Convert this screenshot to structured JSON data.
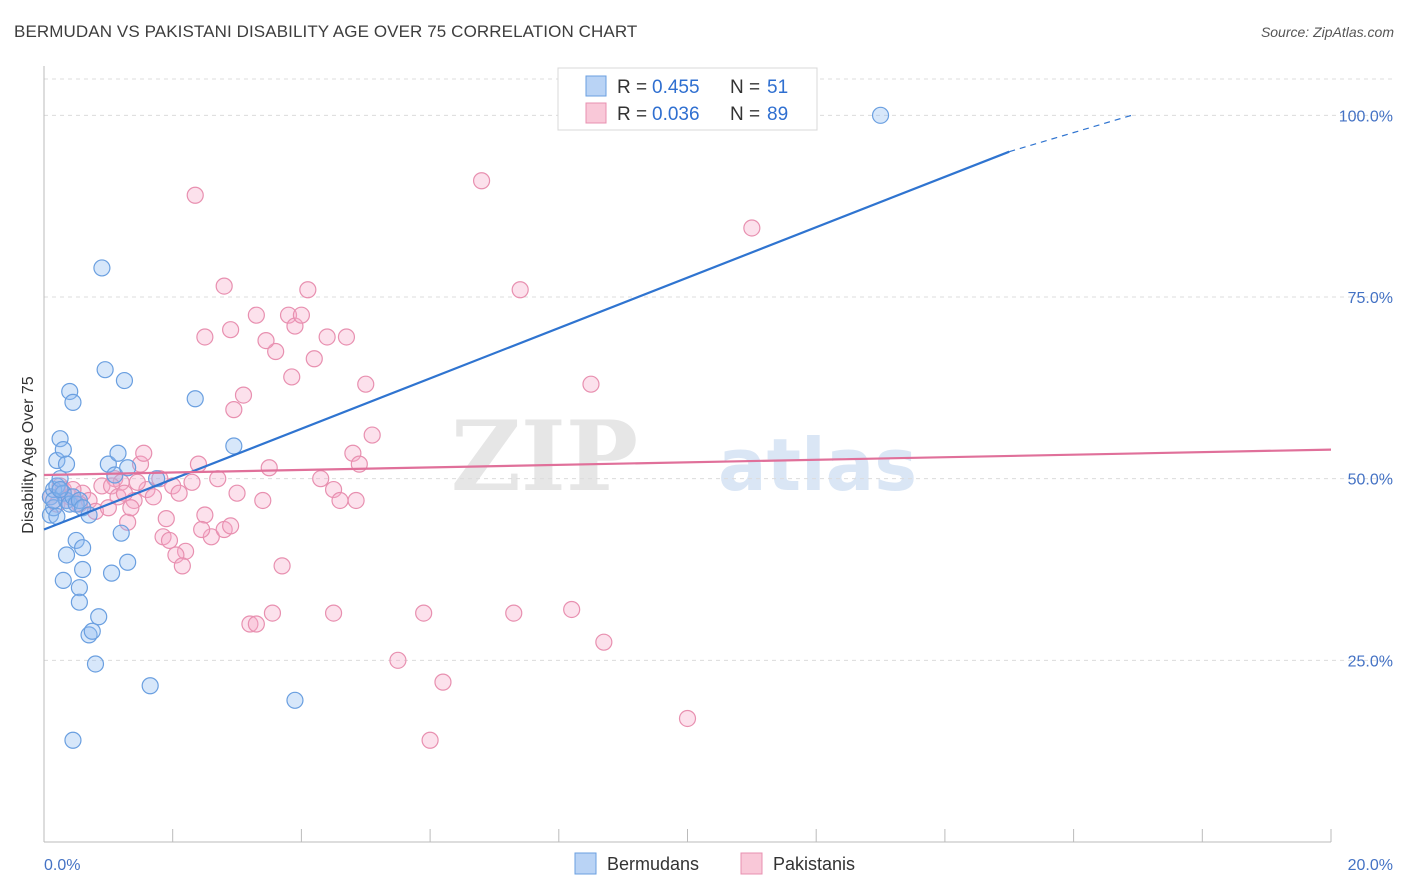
{
  "title": "BERMUDAN VS PAKISTANI DISABILITY AGE OVER 75 CORRELATION CHART",
  "source": "Source: ZipAtlas.com",
  "watermark": {
    "zip": "ZIP",
    "atlas": "atlas"
  },
  "legend": {
    "r_label": "R =",
    "n_label": "N =",
    "rows": [
      {
        "r": "0.455",
        "n": "51",
        "fill": "#b9d3f5",
        "stroke": "#6a9fe0"
      },
      {
        "r": "0.036",
        "n": "89",
        "fill": "#f9c8d8",
        "stroke": "#e890b0"
      }
    ]
  },
  "bottom_legend": [
    {
      "label": "Bermudans",
      "fill": "#b9d3f5",
      "stroke": "#6a9fe0"
    },
    {
      "label": "Pakistanis",
      "fill": "#f9c8d8",
      "stroke": "#e890b0"
    }
  ],
  "chart_data": {
    "type": "scatter",
    "title": "BERMUDAN VS PAKISTANI DISABILITY AGE OVER 75 CORRELATION CHART",
    "xlabel": "",
    "ylabel": "Disability Age Over 75",
    "xlim": [
      0,
      20
    ],
    "ylim": [
      0,
      105
    ],
    "x_tick_labels": [
      "0.0%",
      "20.0%"
    ],
    "y_ticks": [
      25,
      50,
      75,
      100
    ],
    "y_tick_labels": [
      "25.0%",
      "50.0%",
      "75.0%",
      "100.0%"
    ],
    "grid": "horizontal dashed",
    "series": [
      {
        "name": "Bermudans",
        "color": "#6a9fe0",
        "line_color": "#2f74d0",
        "trend": {
          "x": [
            0,
            15
          ],
          "y": [
            43.0,
            95.0
          ],
          "dashed_to": [
            16.9,
            100.0
          ]
        },
        "points": [
          [
            0.1,
            47.5
          ],
          [
            0.15,
            48.5
          ],
          [
            0.2,
            49.0
          ],
          [
            0.1,
            45.0
          ],
          [
            0.15,
            46.0
          ],
          [
            0.2,
            44.8
          ],
          [
            0.25,
            50.0
          ],
          [
            0.3,
            48.0
          ],
          [
            0.35,
            47.0
          ],
          [
            0.4,
            46.5
          ],
          [
            0.45,
            47.5
          ],
          [
            0.5,
            46.5
          ],
          [
            0.55,
            47.0
          ],
          [
            0.6,
            46.0
          ],
          [
            0.2,
            52.5
          ],
          [
            0.25,
            55.5
          ],
          [
            0.3,
            54.0
          ],
          [
            0.35,
            52.0
          ],
          [
            0.4,
            62.0
          ],
          [
            0.45,
            60.5
          ],
          [
            0.35,
            39.5
          ],
          [
            0.5,
            41.5
          ],
          [
            0.55,
            35.0
          ],
          [
            0.6,
            37.5
          ],
          [
            0.55,
            33.0
          ],
          [
            0.6,
            40.5
          ],
          [
            0.3,
            36.0
          ],
          [
            0.7,
            28.5
          ],
          [
            0.75,
            29.0
          ],
          [
            0.8,
            24.5
          ],
          [
            0.85,
            31.0
          ],
          [
            0.9,
            79.0
          ],
          [
            0.95,
            65.0
          ],
          [
            1.0,
            52.0
          ],
          [
            1.05,
            37.0
          ],
          [
            1.1,
            50.5
          ],
          [
            1.15,
            53.5
          ],
          [
            1.2,
            42.5
          ],
          [
            1.25,
            63.5
          ],
          [
            1.3,
            51.5
          ],
          [
            1.3,
            38.5
          ],
          [
            1.65,
            21.5
          ],
          [
            1.75,
            50.0
          ],
          [
            2.35,
            61.0
          ],
          [
            2.95,
            54.5
          ],
          [
            3.9,
            19.5
          ],
          [
            0.45,
            14.0
          ],
          [
            13.0,
            100.0
          ],
          [
            0.7,
            45.0
          ],
          [
            0.15,
            47.0
          ],
          [
            0.25,
            48.5
          ]
        ]
      },
      {
        "name": "Pakistanis",
        "color": "#e890b0",
        "line_color": "#e0709a",
        "trend": {
          "x": [
            0,
            20
          ],
          "y": [
            50.5,
            54.0
          ]
        },
        "points": [
          [
            0.1,
            47.5
          ],
          [
            0.2,
            46.5
          ],
          [
            0.3,
            48.5
          ],
          [
            0.4,
            47.5
          ],
          [
            0.5,
            46.5
          ],
          [
            0.6,
            48.0
          ],
          [
            0.7,
            47.0
          ],
          [
            0.8,
            45.5
          ],
          [
            0.9,
            49.0
          ],
          [
            1.0,
            46.0
          ],
          [
            1.1,
            50.0
          ],
          [
            1.2,
            49.5
          ],
          [
            1.3,
            44.0
          ],
          [
            1.4,
            47.0
          ],
          [
            1.5,
            52.0
          ],
          [
            1.55,
            53.5
          ],
          [
            1.6,
            48.5
          ],
          [
            1.7,
            47.5
          ],
          [
            1.8,
            50.0
          ],
          [
            1.9,
            44.5
          ],
          [
            2.0,
            49.0
          ],
          [
            2.1,
            48.0
          ],
          [
            2.2,
            40.0
          ],
          [
            2.3,
            49.5
          ],
          [
            2.4,
            52.0
          ],
          [
            2.5,
            45.0
          ],
          [
            2.6,
            42.0
          ],
          [
            2.7,
            50.0
          ],
          [
            2.8,
            43.0
          ],
          [
            2.9,
            43.5
          ],
          [
            3.0,
            48.0
          ],
          [
            3.1,
            61.5
          ],
          [
            3.2,
            30.0
          ],
          [
            3.3,
            30.0
          ],
          [
            3.4,
            47.0
          ],
          [
            3.5,
            51.5
          ],
          [
            3.6,
            67.5
          ],
          [
            3.7,
            38.0
          ],
          [
            3.8,
            72.5
          ],
          [
            3.9,
            71.0
          ],
          [
            4.0,
            72.5
          ],
          [
            4.1,
            76.0
          ],
          [
            4.2,
            66.5
          ],
          [
            4.3,
            50.0
          ],
          [
            4.4,
            69.5
          ],
          [
            4.5,
            48.5
          ],
          [
            4.6,
            47.0
          ],
          [
            4.7,
            69.5
          ],
          [
            4.8,
            53.5
          ],
          [
            4.9,
            52.0
          ],
          [
            2.35,
            89.0
          ],
          [
            2.8,
            76.5
          ],
          [
            2.9,
            70.5
          ],
          [
            2.5,
            69.5
          ],
          [
            3.3,
            72.5
          ],
          [
            3.45,
            69.0
          ],
          [
            3.85,
            64.0
          ],
          [
            2.95,
            59.5
          ],
          [
            4.5,
            31.5
          ],
          [
            5.0,
            63.0
          ],
          [
            5.5,
            25.0
          ],
          [
            6.2,
            22.0
          ],
          [
            7.3,
            31.5
          ],
          [
            7.4,
            76.0
          ],
          [
            8.2,
            32.0
          ],
          [
            8.5,
            63.0
          ],
          [
            8.7,
            27.5
          ],
          [
            10.0,
            17.0
          ],
          [
            11.0,
            84.5
          ],
          [
            6.0,
            14.0
          ],
          [
            5.9,
            31.5
          ],
          [
            0.25,
            49.0
          ],
          [
            0.35,
            47.0
          ],
          [
            0.45,
            48.5
          ],
          [
            0.55,
            46.5
          ],
          [
            1.05,
            49.0
          ],
          [
            1.15,
            47.5
          ],
          [
            1.25,
            48.0
          ],
          [
            1.35,
            46.0
          ],
          [
            1.45,
            49.5
          ],
          [
            1.85,
            42.0
          ],
          [
            1.95,
            41.5
          ],
          [
            2.05,
            39.5
          ],
          [
            2.15,
            38.0
          ],
          [
            3.55,
            31.5
          ],
          [
            4.85,
            47.0
          ],
          [
            6.8,
            91.0
          ],
          [
            5.1,
            56.0
          ],
          [
            2.45,
            43.0
          ]
        ]
      }
    ]
  }
}
